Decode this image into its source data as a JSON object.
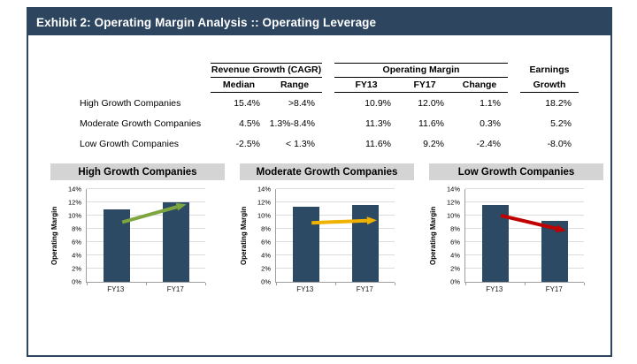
{
  "exhibit": {
    "title": "Exhibit 2: Operating Margin Analysis :: Operating Leverage"
  },
  "colors": {
    "navy": "#2D455E",
    "bar": "#2C4A64",
    "panel_title_bg": "#D4D4D4",
    "arrow_up_green": "#7EA63F",
    "arrow_flat_yellow": "#F0B200",
    "arrow_down_red": "#C00000"
  },
  "table": {
    "groups": [
      {
        "label": "Revenue Growth (CAGR)"
      },
      {
        "label": "Operating Margin"
      },
      {
        "label_line1": "Earnings",
        "label_line2": "Growth"
      }
    ],
    "columns": [
      "Median",
      "Range",
      "FY13",
      "FY17",
      "Change"
    ],
    "rows": [
      {
        "label": "High Growth Companies",
        "median": "15.4%",
        "range": ">8.4%",
        "fy13": "10.9%",
        "fy17": "12.0%",
        "change": "1.1%",
        "earnings": "18.2%"
      },
      {
        "label": "Moderate Growth Companies",
        "median": "4.5%",
        "range": "1.3%-8.4%",
        "fy13": "11.3%",
        "fy17": "11.6%",
        "change": "0.3%",
        "earnings": "5.2%"
      },
      {
        "label": "Low Growth Companies",
        "median": "-2.5%",
        "range": "< 1.3%",
        "fy13": "11.6%",
        "fy17": "9.2%",
        "change": "-2.4%",
        "earnings": "-8.0%"
      }
    ]
  },
  "chart_data": [
    {
      "type": "bar",
      "title": "High Growth Companies",
      "categories": [
        "FY13",
        "FY17"
      ],
      "values": [
        10.9,
        12.0
      ],
      "ylabel": "Operating Margin",
      "ylim": [
        0,
        14
      ],
      "ytick_step": 2,
      "ytick_suffix": "%",
      "grid": true,
      "arrow": {
        "color": "#7EA63F",
        "from": [
          0.3,
          9.0
        ],
        "to": [
          0.84,
          11.7
        ],
        "direction": "up"
      }
    },
    {
      "type": "bar",
      "title": "Moderate Growth Companies",
      "categories": [
        "FY13",
        "FY17"
      ],
      "values": [
        11.3,
        11.6
      ],
      "ylabel": "Operating Margin",
      "ylim": [
        0,
        14
      ],
      "ytick_step": 2,
      "ytick_suffix": "%",
      "grid": true,
      "arrow": {
        "color": "#F0B200",
        "from": [
          0.3,
          8.9
        ],
        "to": [
          0.85,
          9.3
        ],
        "direction": "flat"
      }
    },
    {
      "type": "bar",
      "title": "Low Growth Companies",
      "categories": [
        "FY13",
        "FY17"
      ],
      "values": [
        11.6,
        9.2
      ],
      "ylabel": "Operating Margin",
      "ylim": [
        0,
        14
      ],
      "ytick_step": 2,
      "ytick_suffix": "%",
      "grid": true,
      "arrow": {
        "color": "#C00000",
        "from": [
          0.3,
          10.0
        ],
        "to": [
          0.85,
          7.7
        ],
        "direction": "down"
      }
    }
  ]
}
